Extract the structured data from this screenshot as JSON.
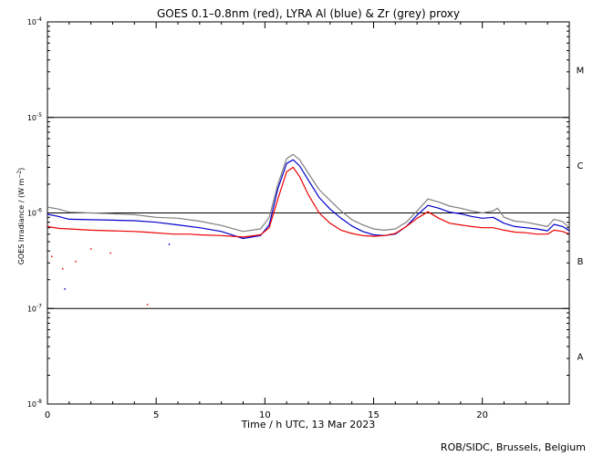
{
  "chart_data": {
    "type": "line",
    "title": "GOES 0.1–0.8nm (red), LYRA Al (blue) & Zr (grey) proxy",
    "xlabel": "Time / h UTC, 13 Mar 2023",
    "ylabel_main": "GOES Irradiance / (W m",
    "ylabel_sup": "−2",
    "ylabel_close": ")",
    "y_scale": "log",
    "xlim": [
      0,
      24
    ],
    "ylim": [
      1e-08,
      0.0001
    ],
    "x_ticks": [
      {
        "value": 0,
        "label": "0"
      },
      {
        "value": 5,
        "label": "5"
      },
      {
        "value": 10,
        "label": "10"
      },
      {
        "value": 15,
        "label": "15"
      },
      {
        "value": 20,
        "label": "20"
      }
    ],
    "y_ticks": [
      {
        "exp": -8,
        "base": "10",
        "sup": "-8"
      },
      {
        "exp": -7,
        "base": "10",
        "sup": "-7"
      },
      {
        "exp": -6,
        "base": "10",
        "sup": "-6"
      },
      {
        "exp": -5,
        "base": "10",
        "sup": "-5"
      },
      {
        "exp": -4,
        "base": "10",
        "sup": "-4"
      }
    ],
    "flare_class_lines": [
      1e-07,
      1e-06,
      1e-05
    ],
    "flare_classes": [
      {
        "label": "A",
        "log_center": -7.5
      },
      {
        "label": "B",
        "log_center": -6.5
      },
      {
        "label": "C",
        "log_center": -5.5
      },
      {
        "label": "M",
        "log_center": -4.5
      }
    ],
    "series": [
      {
        "color": "#808080",
        "points": [
          [
            0,
            1.15e-06
          ],
          [
            0.5,
            1.1e-06
          ],
          [
            1,
            1.02e-06
          ],
          [
            2,
            1e-06
          ],
          [
            3,
            9.8e-07
          ],
          [
            4,
            9.6e-07
          ],
          [
            5,
            9e-07
          ],
          [
            6,
            8.8e-07
          ],
          [
            7,
            8.2e-07
          ],
          [
            8,
            7.4e-07
          ],
          [
            9,
            6.4e-07
          ],
          [
            9.8,
            6.8e-07
          ],
          [
            10.2,
            9e-07
          ],
          [
            10.6,
            2e-06
          ],
          [
            11.0,
            3.7e-06
          ],
          [
            11.3,
            4.1e-06
          ],
          [
            11.6,
            3.6e-06
          ],
          [
            12.0,
            2.6e-06
          ],
          [
            12.5,
            1.75e-06
          ],
          [
            13.0,
            1.35e-06
          ],
          [
            13.5,
            1.05e-06
          ],
          [
            14.0,
            8.5e-07
          ],
          [
            14.5,
            7.5e-07
          ],
          [
            15.0,
            6.8e-07
          ],
          [
            15.5,
            6.6e-07
          ],
          [
            16.0,
            6.8e-07
          ],
          [
            16.5,
            8e-07
          ],
          [
            17.0,
            1.05e-06
          ],
          [
            17.5,
            1.4e-06
          ],
          [
            18.0,
            1.3e-06
          ],
          [
            18.5,
            1.18e-06
          ],
          [
            19.0,
            1.12e-06
          ],
          [
            19.5,
            1.05e-06
          ],
          [
            20.0,
            1e-06
          ],
          [
            20.5,
            1.05e-06
          ],
          [
            20.7,
            1.12e-06
          ],
          [
            21.0,
            9e-07
          ],
          [
            21.5,
            8.2e-07
          ],
          [
            22.0,
            8e-07
          ],
          [
            22.5,
            7.6e-07
          ],
          [
            23.0,
            7.2e-07
          ],
          [
            23.3,
            8.6e-07
          ],
          [
            23.7,
            8.1e-07
          ],
          [
            24.0,
            7e-07
          ]
        ]
      },
      {
        "color": "#0000cc",
        "points": [
          [
            0,
            9.7e-07
          ],
          [
            0.5,
            9.2e-07
          ],
          [
            1,
            8.6e-07
          ],
          [
            2,
            8.5e-07
          ],
          [
            3,
            8.4e-07
          ],
          [
            4,
            8.3e-07
          ],
          [
            5,
            8e-07
          ],
          [
            6,
            7.5e-07
          ],
          [
            7,
            7e-07
          ],
          [
            8,
            6.4e-07
          ],
          [
            9,
            5.4e-07
          ],
          [
            9.8,
            5.8e-07
          ],
          [
            10.2,
            7.5e-07
          ],
          [
            10.6,
            1.8e-06
          ],
          [
            11.0,
            3.3e-06
          ],
          [
            11.3,
            3.6e-06
          ],
          [
            11.6,
            3.1e-06
          ],
          [
            12.0,
            2.2e-06
          ],
          [
            12.5,
            1.45e-06
          ],
          [
            13.0,
            1.1e-06
          ],
          [
            13.5,
            8.8e-07
          ],
          [
            14.0,
            7.3e-07
          ],
          [
            14.5,
            6.4e-07
          ],
          [
            15.0,
            5.9e-07
          ],
          [
            15.5,
            5.8e-07
          ],
          [
            16.0,
            6e-07
          ],
          [
            16.5,
            7.2e-07
          ],
          [
            17.0,
            9.5e-07
          ],
          [
            17.5,
            1.2e-06
          ],
          [
            18.0,
            1.12e-06
          ],
          [
            18.5,
            1.02e-06
          ],
          [
            19.0,
            9.8e-07
          ],
          [
            19.5,
            9.2e-07
          ],
          [
            20.0,
            8.8e-07
          ],
          [
            20.5,
            9e-07
          ],
          [
            21.0,
            7.8e-07
          ],
          [
            21.5,
            7.2e-07
          ],
          [
            22.0,
            7e-07
          ],
          [
            22.5,
            6.8e-07
          ],
          [
            23.0,
            6.5e-07
          ],
          [
            23.3,
            7.6e-07
          ],
          [
            23.7,
            7.2e-07
          ],
          [
            24.0,
            6.5e-07
          ]
        ]
      },
      {
        "color": "#ee0000",
        "points": [
          [
            0,
            7.2e-07
          ],
          [
            0.5,
            6.9e-07
          ],
          [
            1,
            6.8e-07
          ],
          [
            2,
            6.6e-07
          ],
          [
            3,
            6.5e-07
          ],
          [
            4,
            6.4e-07
          ],
          [
            4.5,
            6.3e-07
          ],
          [
            5.8,
            6e-07
          ],
          [
            6.5,
            6e-07
          ],
          [
            7,
            5.9e-07
          ],
          [
            8,
            5.8e-07
          ],
          [
            9,
            5.6e-07
          ],
          [
            9.8,
            5.9e-07
          ],
          [
            10.2,
            7e-07
          ],
          [
            10.6,
            1.4e-06
          ],
          [
            11.0,
            2.7e-06
          ],
          [
            11.3,
            3e-06
          ],
          [
            11.6,
            2.4e-06
          ],
          [
            12.0,
            1.55e-06
          ],
          [
            12.5,
            1e-06
          ],
          [
            13.0,
            7.8e-07
          ],
          [
            13.5,
            6.6e-07
          ],
          [
            14.0,
            6.1e-07
          ],
          [
            14.5,
            5.8e-07
          ],
          [
            15.0,
            5.7e-07
          ],
          [
            15.5,
            5.8e-07
          ],
          [
            16.0,
            6.1e-07
          ],
          [
            16.5,
            7.2e-07
          ],
          [
            17.0,
            8.8e-07
          ],
          [
            17.5,
            1.03e-06
          ],
          [
            18.0,
            8.8e-07
          ],
          [
            18.5,
            7.8e-07
          ],
          [
            19.0,
            7.5e-07
          ],
          [
            19.5,
            7.2e-07
          ],
          [
            20.0,
            7e-07
          ],
          [
            20.5,
            7e-07
          ],
          [
            21.0,
            6.6e-07
          ],
          [
            21.5,
            6.3e-07
          ],
          [
            22.0,
            6.2e-07
          ],
          [
            22.5,
            6e-07
          ],
          [
            23.0,
            6e-07
          ],
          [
            23.3,
            6.6e-07
          ],
          [
            23.7,
            6.4e-07
          ],
          [
            24.0,
            6e-07
          ]
        ]
      }
    ],
    "sparse_points": [
      {
        "color": "#ee0000",
        "x": 0.2,
        "y": 3.5e-07
      },
      {
        "color": "#ee0000",
        "x": 0.7,
        "y": 2.6e-07
      },
      {
        "color": "#ee0000",
        "x": 1.3,
        "y": 3.1e-07
      },
      {
        "color": "#ee0000",
        "x": 2.0,
        "y": 4.2e-07
      },
      {
        "color": "#ee0000",
        "x": 2.9,
        "y": 3.8e-07
      },
      {
        "color": "#ee0000",
        "x": 4.6,
        "y": 1.1e-07
      },
      {
        "color": "#0000cc",
        "x": 0.8,
        "y": 1.6e-07
      },
      {
        "color": "#0000cc",
        "x": 5.6,
        "y": 4.7e-07
      }
    ]
  },
  "credit": "ROB/SIDC, Brussels, Belgium"
}
